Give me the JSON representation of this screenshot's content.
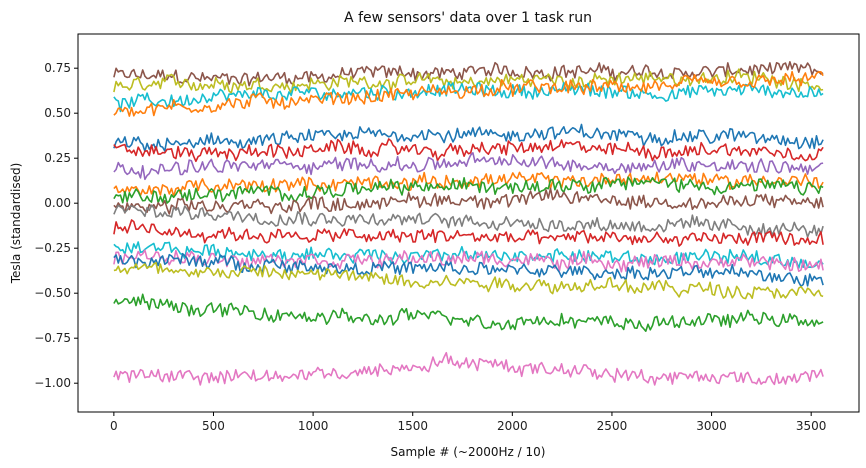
{
  "chart_data": {
    "type": "line",
    "title": "A few sensors' data over 1 task run",
    "xlabel": "Sample # (~2000Hz / 10)",
    "ylabel": "Tesla (standardised)",
    "xlim": [
      -180,
      3740
    ],
    "ylim": [
      -1.16,
      0.94
    ],
    "x_ticks": [
      0,
      500,
      1000,
      1500,
      2000,
      2500,
      3000,
      3500
    ],
    "x_tick_labels": [
      "0",
      "500",
      "1000",
      "1500",
      "2000",
      "2500",
      "3000",
      "3500"
    ],
    "y_ticks": [
      0.75,
      0.5,
      0.25,
      0.0,
      -0.25,
      -0.5,
      -0.75,
      -1.0
    ],
    "y_tick_labels": [
      "0.75",
      "0.50",
      "0.25",
      "0.00",
      "−0.25",
      "−0.50",
      "−0.75",
      "−1.00"
    ],
    "grid": false,
    "x_start": 0,
    "x_end": 3560,
    "series": [
      {
        "color": "#8c564b",
        "values": [
          0.71,
          0.7,
          0.69,
          0.7,
          0.71,
          0.73,
          0.72,
          0.73,
          0.74,
          0.73,
          0.72,
          0.73,
          0.74,
          0.73
        ]
      },
      {
        "color": "#bcbd22",
        "values": [
          0.64,
          0.66,
          0.67,
          0.66,
          0.67,
          0.68,
          0.67,
          0.68,
          0.69,
          0.68,
          0.69,
          0.7,
          0.69,
          0.67
        ]
      },
      {
        "color": "#17becf",
        "values": [
          0.55,
          0.57,
          0.58,
          0.6,
          0.61,
          0.62,
          0.63,
          0.62,
          0.63,
          0.62,
          0.61,
          0.62,
          0.63,
          0.6
        ]
      },
      {
        "color": "#ff7f0e",
        "values": [
          0.52,
          0.53,
          0.55,
          0.57,
          0.58,
          0.6,
          0.62,
          0.63,
          0.64,
          0.64,
          0.65,
          0.66,
          0.67,
          0.7
        ]
      },
      {
        "color": "#1f77b4",
        "values": [
          0.33,
          0.32,
          0.34,
          0.35,
          0.37,
          0.38,
          0.39,
          0.38,
          0.39,
          0.38,
          0.38,
          0.37,
          0.37,
          0.35
        ]
      },
      {
        "color": "#d62728",
        "values": [
          0.3,
          0.28,
          0.28,
          0.29,
          0.3,
          0.3,
          0.29,
          0.3,
          0.31,
          0.3,
          0.29,
          0.3,
          0.29,
          0.28
        ]
      },
      {
        "color": "#9467bd",
        "values": [
          0.2,
          0.19,
          0.2,
          0.21,
          0.22,
          0.21,
          0.22,
          0.23,
          0.22,
          0.21,
          0.21,
          0.22,
          0.21,
          0.2
        ]
      },
      {
        "color": "#ff7f0e",
        "values": [
          0.06,
          0.08,
          0.09,
          0.1,
          0.11,
          0.12,
          0.12,
          0.13,
          0.12,
          0.13,
          0.14,
          0.13,
          0.13,
          0.12
        ]
      },
      {
        "color": "#2ca02c",
        "values": [
          0.03,
          0.04,
          0.05,
          0.06,
          0.07,
          0.08,
          0.09,
          0.1,
          0.11,
          0.12,
          0.11,
          0.1,
          0.09,
          0.08
        ]
      },
      {
        "color": "#8c564b",
        "values": [
          -0.02,
          -0.03,
          -0.02,
          -0.01,
          0.0,
          0.01,
          0.02,
          0.02,
          0.03,
          0.02,
          0.01,
          0.0,
          0.01,
          0.0
        ]
      },
      {
        "color": "#7f7f7f",
        "values": [
          -0.04,
          -0.05,
          -0.06,
          -0.07,
          -0.08,
          -0.09,
          -0.1,
          -0.1,
          -0.11,
          -0.12,
          -0.12,
          -0.13,
          -0.14,
          -0.15
        ]
      },
      {
        "color": "#d62728",
        "values": [
          -0.14,
          -0.16,
          -0.17,
          -0.18,
          -0.18,
          -0.19,
          -0.18,
          -0.19,
          -0.2,
          -0.19,
          -0.2,
          -0.2,
          -0.19,
          -0.21
        ]
      },
      {
        "color": "#17becf",
        "values": [
          -0.27,
          -0.26,
          -0.27,
          -0.28,
          -0.29,
          -0.28,
          -0.29,
          -0.3,
          -0.29,
          -0.3,
          -0.31,
          -0.3,
          -0.31,
          -0.33
        ]
      },
      {
        "color": "#e377c2",
        "values": [
          -0.3,
          -0.3,
          -0.31,
          -0.3,
          -0.31,
          -0.32,
          -0.31,
          -0.31,
          -0.32,
          -0.33,
          -0.32,
          -0.33,
          -0.34,
          -0.35
        ]
      },
      {
        "color": "#1f77b4",
        "values": [
          -0.31,
          -0.32,
          -0.33,
          -0.34,
          -0.35,
          -0.36,
          -0.37,
          -0.37,
          -0.38,
          -0.38,
          -0.39,
          -0.39,
          -0.4,
          -0.42
        ]
      },
      {
        "color": "#bcbd22",
        "values": [
          -0.36,
          -0.37,
          -0.38,
          -0.39,
          -0.4,
          -0.42,
          -0.43,
          -0.44,
          -0.45,
          -0.46,
          -0.47,
          -0.48,
          -0.48,
          -0.5
        ]
      },
      {
        "color": "#2ca02c",
        "values": [
          -0.55,
          -0.57,
          -0.6,
          -0.62,
          -0.64,
          -0.65,
          -0.62,
          -0.66,
          -0.64,
          -0.66,
          -0.67,
          -0.65,
          -0.63,
          -0.68
        ]
      },
      {
        "color": "#e377c2",
        "values": [
          -0.96,
          -0.95,
          -0.97,
          -0.96,
          -0.95,
          -0.92,
          -0.87,
          -0.9,
          -0.92,
          -0.93,
          -0.97,
          -0.96,
          -0.98,
          -0.93
        ]
      }
    ]
  }
}
